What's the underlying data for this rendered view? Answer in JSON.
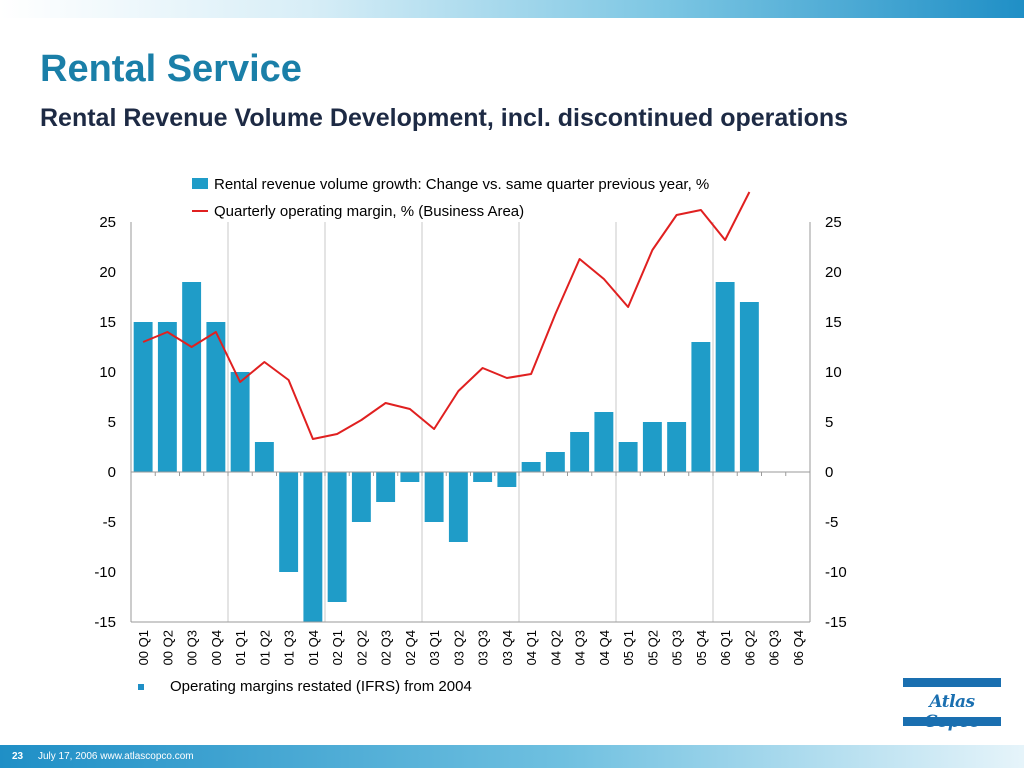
{
  "slide": {
    "title": "Rental Service",
    "subtitle": "Rental Revenue Volume Development, incl. discontinued operations",
    "note": "Operating margins restated (IFRS) from 2004",
    "logo_text": "Atlas Copco",
    "page_number": "23",
    "footer_text": "July 17, 2006  www.atlascopco.com",
    "colors": {
      "title": "#1a7fa8",
      "bar": "#1f9cc8",
      "line": "#e02020",
      "accent": "#1a6fb0"
    }
  },
  "chart_data": {
    "type": "bar",
    "categories": [
      "00 Q1",
      "00 Q2",
      "00 Q3",
      "00 Q4",
      "01 Q1",
      "01 Q2",
      "01 Q3",
      "01 Q4",
      "02 Q1",
      "02 Q2",
      "02 Q3",
      "02 Q4",
      "03 Q1",
      "03 Q2",
      "03 Q3",
      "03 Q4",
      "04 Q1",
      "04 Q2",
      "04 Q3",
      "04 Q4",
      "05 Q1",
      "05 Q2",
      "05 Q3",
      "05 Q4",
      "06 Q1",
      "06 Q2",
      "06 Q3",
      "06 Q4"
    ],
    "series": [
      {
        "name": "Rental revenue volume growth: Change vs. same quarter previous year, %",
        "type": "bar",
        "values": [
          15,
          15,
          19,
          15,
          10,
          3,
          -10,
          -15,
          -13,
          -5,
          -3,
          -1,
          -5,
          -7,
          -1,
          -1.5,
          1,
          2,
          4,
          6,
          3,
          5,
          5,
          13,
          19,
          17,
          null,
          null
        ]
      },
      {
        "name": "Quarterly operating margin, % (Business Area)",
        "type": "line",
        "values": [
          13,
          14,
          12.5,
          14,
          9,
          11,
          9.2,
          3.3,
          3.8,
          5.2,
          6.9,
          6.3,
          4.3,
          8.1,
          10.4,
          9.4,
          9.8,
          15.8,
          21.3,
          19.3,
          16.5,
          22.2,
          25.7,
          26.2,
          23.2,
          28,
          null,
          null
        ]
      }
    ],
    "ylim": [
      -15,
      25
    ],
    "yticks": [
      -15,
      -10,
      -5,
      0,
      5,
      10,
      15,
      20,
      25
    ],
    "secondary_yticks": [
      -15,
      -10,
      -5,
      0,
      5,
      10,
      15,
      20,
      25
    ],
    "grid": "vertical every 4 categories",
    "legend_position": "top"
  }
}
